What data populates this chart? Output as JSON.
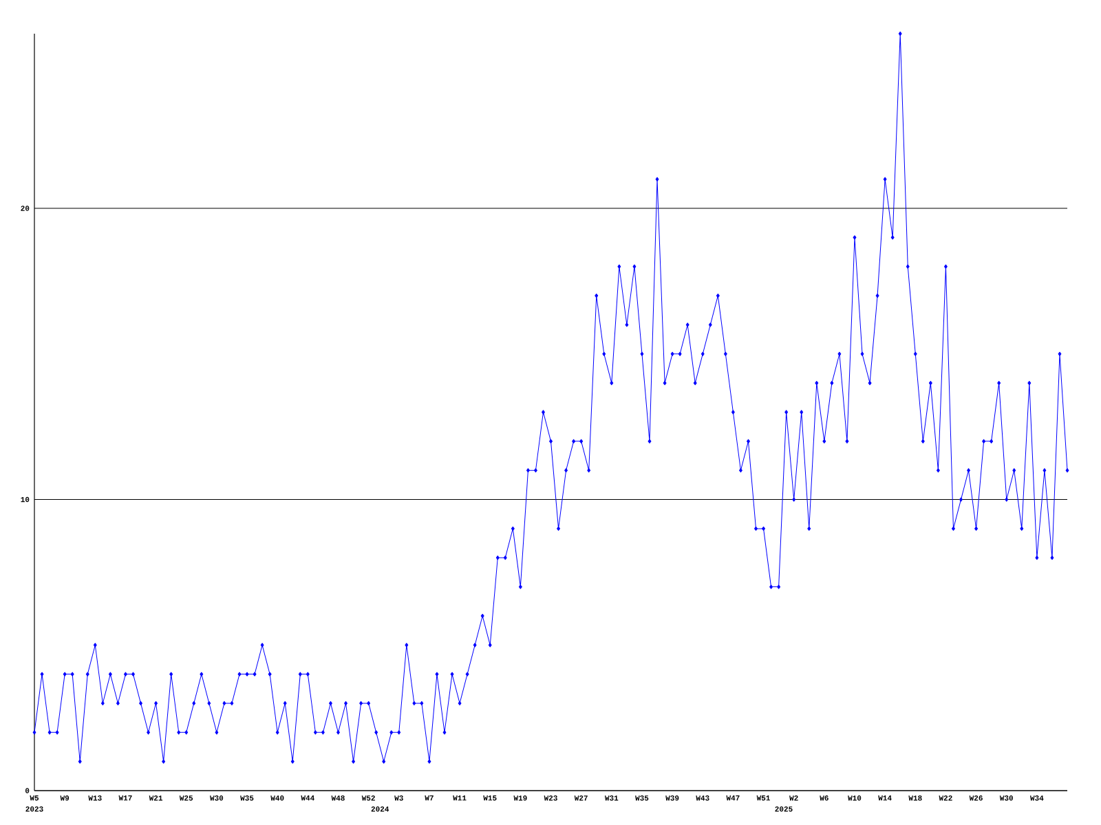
{
  "chart_data": {
    "type": "line",
    "categories": [
      "W5",
      null,
      null,
      null,
      "W9",
      null,
      null,
      null,
      "W13",
      null,
      null,
      null,
      "W17",
      null,
      null,
      null,
      "W21",
      null,
      null,
      null,
      "W25",
      null,
      null,
      null,
      "W30",
      null,
      null,
      null,
      "W35",
      null,
      null,
      null,
      "W40",
      null,
      null,
      null,
      "W44",
      null,
      null,
      null,
      "W48",
      null,
      null,
      null,
      "W52",
      null,
      null,
      null,
      "W3",
      null,
      null,
      null,
      "W7",
      null,
      null,
      null,
      "W11",
      null,
      null,
      null,
      "W15",
      null,
      null,
      null,
      "W19",
      null,
      null,
      null,
      "W23",
      null,
      null,
      null,
      "W27",
      null,
      null,
      null,
      "W31",
      null,
      null,
      null,
      "W35",
      null,
      null,
      null,
      "W39",
      null,
      null,
      null,
      "W43",
      null,
      null,
      null,
      "W47",
      null,
      null,
      null,
      "W51",
      null,
      null,
      null,
      "W2",
      null,
      null,
      null,
      "W6",
      null,
      null,
      null,
      "W10",
      null,
      null,
      null,
      "W14",
      null,
      null,
      null,
      "W18",
      null,
      null,
      null,
      "W22",
      null,
      null,
      null,
      "W26",
      null,
      null,
      null,
      "W30",
      null,
      null,
      null,
      "W34",
      null,
      null,
      null,
      null
    ],
    "values": [
      2,
      4,
      2,
      2,
      4,
      4,
      1,
      4,
      5,
      3,
      4,
      3,
      4,
      4,
      3,
      2,
      3,
      1,
      4,
      2,
      2,
      3,
      4,
      3,
      2,
      3,
      3,
      4,
      4,
      4,
      5,
      4,
      2,
      3,
      1,
      4,
      4,
      2,
      2,
      3,
      2,
      3,
      1,
      3,
      3,
      2,
      1,
      2,
      2,
      5,
      3,
      3,
      1,
      4,
      2,
      4,
      3,
      4,
      5,
      6,
      5,
      8,
      8,
      9,
      7,
      11,
      11,
      13,
      12,
      9,
      11,
      12,
      12,
      11,
      17,
      15,
      14,
      18,
      16,
      18,
      15,
      12,
      21,
      14,
      15,
      15,
      16,
      14,
      15,
      16,
      17,
      15,
      13,
      11,
      12,
      9,
      9,
      7,
      7,
      13,
      10,
      13,
      9,
      14,
      12,
      14,
      15,
      12,
      19,
      15,
      14,
      17,
      21,
      19,
      26,
      18,
      15,
      12,
      14,
      11,
      18,
      9,
      10,
      11,
      9,
      12,
      12,
      14,
      10,
      11,
      9,
      14,
      8,
      11,
      8,
      15,
      11
    ],
    "color": "#0000ff",
    "marker": "diamond",
    "grid": "y",
    "ylim": [
      0,
      26
    ],
    "yticks": [
      0,
      10,
      20
    ],
    "annotations": [
      "2023",
      "2024",
      "2025"
    ]
  }
}
